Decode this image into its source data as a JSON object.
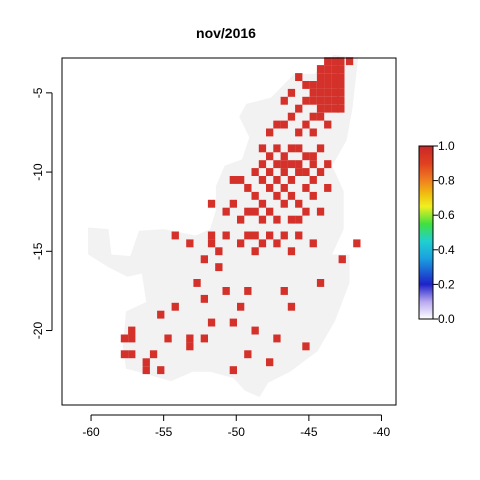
{
  "chart_data": {
    "type": "heatmap",
    "title": "nov/2016",
    "xlabel": "",
    "ylabel": "",
    "xlim": [
      -62,
      -39
    ],
    "ylim": [
      -24.7,
      -2.8
    ],
    "x_ticks": [
      -60,
      -55,
      -50,
      -45,
      -40
    ],
    "y_ticks": [
      -5,
      -10,
      -15,
      -20
    ],
    "grid": false,
    "cell_size_deg": 0.5,
    "background_value": 0,
    "colors": {
      "region_fill": "#f2f2f2",
      "hot_cell": "#d3312a"
    },
    "legend": {
      "placement": "right",
      "ticks": [
        0.0,
        0.2,
        0.4,
        0.6,
        0.8,
        1.0
      ],
      "tick_labels": [
        "0.0",
        "0.2",
        "0.4",
        "0.6",
        "0.8",
        "1.0"
      ],
      "gradient": [
        {
          "value": 0.0,
          "color": "#ffffff"
        },
        {
          "value": 0.1,
          "color": "#b8a8f0"
        },
        {
          "value": 0.2,
          "color": "#1e22c8"
        },
        {
          "value": 0.35,
          "color": "#1aa0e0"
        },
        {
          "value": 0.45,
          "color": "#20d0d0"
        },
        {
          "value": 0.55,
          "color": "#40e040"
        },
        {
          "value": 0.65,
          "color": "#f0f020"
        },
        {
          "value": 0.72,
          "color": "#f0c010"
        },
        {
          "value": 0.8,
          "color": "#f08020"
        },
        {
          "value": 0.9,
          "color": "#e04020"
        },
        {
          "value": 1.0,
          "color": "#c82828"
        }
      ]
    },
    "region_outline": [
      [
        -60.2,
        -13.5
      ],
      [
        -58.8,
        -13.6
      ],
      [
        -58.6,
        -15.2
      ],
      [
        -57.3,
        -15.3
      ],
      [
        -56.7,
        -13.7
      ],
      [
        -55.0,
        -13.6
      ],
      [
        -52.8,
        -14.0
      ],
      [
        -51.8,
        -13.6
      ],
      [
        -51.4,
        -12.4
      ],
      [
        -51.4,
        -10.9
      ],
      [
        -50.8,
        -9.6
      ],
      [
        -49.6,
        -9.2
      ],
      [
        -49.1,
        -7.8
      ],
      [
        -49.8,
        -6.5
      ],
      [
        -49.3,
        -5.7
      ],
      [
        -47.6,
        -5.3
      ],
      [
        -46.0,
        -3.8
      ],
      [
        -44.6,
        -3.8
      ],
      [
        -43.3,
        -2.6
      ],
      [
        -41.6,
        -2.8
      ],
      [
        -42.0,
        -6.0
      ],
      [
        -42.4,
        -8.0
      ],
      [
        -43.4,
        -9.6
      ],
      [
        -42.6,
        -11.2
      ],
      [
        -42.6,
        -13.6
      ],
      [
        -43.4,
        -15.2
      ],
      [
        -42.2,
        -15.2
      ],
      [
        -42.2,
        -17.0
      ],
      [
        -43.2,
        -19.4
      ],
      [
        -44.4,
        -21.3
      ],
      [
        -46.3,
        -22.6
      ],
      [
        -47.8,
        -23.3
      ],
      [
        -48.4,
        -24.2
      ],
      [
        -49.4,
        -23.8
      ],
      [
        -50.2,
        -23.0
      ],
      [
        -51.8,
        -22.6
      ],
      [
        -53.0,
        -22.6
      ],
      [
        -54.5,
        -23.2
      ],
      [
        -56.0,
        -22.8
      ],
      [
        -57.6,
        -22.4
      ],
      [
        -57.8,
        -21.0
      ],
      [
        -57.6,
        -18.8
      ],
      [
        -56.2,
        -18.2
      ],
      [
        -56.5,
        -16.4
      ],
      [
        -57.5,
        -16.6
      ],
      [
        -58.8,
        -16.0
      ],
      [
        -60.2,
        -15.2
      ]
    ],
    "points": [
      [
        -43.2,
        -3.0
      ],
      [
        -43.7,
        -3.0
      ],
      [
        -42.8,
        -3.0
      ],
      [
        -42.2,
        -3.0
      ],
      [
        -43.7,
        -3.5
      ],
      [
        -43.2,
        -3.5
      ],
      [
        -42.8,
        -3.5
      ],
      [
        -44.2,
        -3.5
      ],
      [
        -44.2,
        -4.0
      ],
      [
        -43.7,
        -4.0
      ],
      [
        -43.2,
        -4.0
      ],
      [
        -42.8,
        -4.0
      ],
      [
        -44.7,
        -4.5
      ],
      [
        -44.2,
        -4.5
      ],
      [
        -43.7,
        -4.5
      ],
      [
        -43.2,
        -4.5
      ],
      [
        -42.8,
        -4.5
      ],
      [
        -44.7,
        -5.0
      ],
      [
        -44.2,
        -5.0
      ],
      [
        -43.7,
        -5.0
      ],
      [
        -43.2,
        -5.0
      ],
      [
        -42.8,
        -5.0
      ],
      [
        -44.7,
        -5.5
      ],
      [
        -44.2,
        -5.5
      ],
      [
        -43.7,
        -5.5
      ],
      [
        -43.2,
        -5.5
      ],
      [
        -42.8,
        -5.5
      ],
      [
        -44.2,
        -6.0
      ],
      [
        -43.7,
        -6.0
      ],
      [
        -43.2,
        -6.0
      ],
      [
        -42.8,
        -6.0
      ],
      [
        -45.7,
        -4.0
      ],
      [
        -46.2,
        -5.0
      ],
      [
        -46.7,
        -5.5
      ],
      [
        -45.2,
        -4.5
      ],
      [
        -45.2,
        -5.5
      ],
      [
        -44.7,
        -6.5
      ],
      [
        -44.2,
        -6.5
      ],
      [
        -45.7,
        -6.0
      ],
      [
        -46.2,
        -6.5
      ],
      [
        -47.2,
        -7.0
      ],
      [
        -46.7,
        -7.0
      ],
      [
        -45.2,
        -7.0
      ],
      [
        -43.7,
        -7.0
      ],
      [
        -47.7,
        -7.5
      ],
      [
        -45.7,
        -7.5
      ],
      [
        -44.7,
        -7.5
      ],
      [
        -48.2,
        -8.5
      ],
      [
        -47.2,
        -8.5
      ],
      [
        -46.2,
        -8.5
      ],
      [
        -45.7,
        -8.5
      ],
      [
        -44.2,
        -8.5
      ],
      [
        -47.7,
        -9.0
      ],
      [
        -46.7,
        -9.0
      ],
      [
        -45.2,
        -9.0
      ],
      [
        -44.7,
        -9.0
      ],
      [
        -48.2,
        -9.5
      ],
      [
        -47.2,
        -9.5
      ],
      [
        -46.7,
        -9.5
      ],
      [
        -46.2,
        -9.5
      ],
      [
        -45.7,
        -9.5
      ],
      [
        -44.7,
        -9.5
      ],
      [
        -43.7,
        -9.5
      ],
      [
        -48.7,
        -10.0
      ],
      [
        -47.7,
        -10.0
      ],
      [
        -46.7,
        -10.0
      ],
      [
        -45.7,
        -10.0
      ],
      [
        -45.2,
        -10.0
      ],
      [
        -44.2,
        -10.0
      ],
      [
        -48.2,
        -10.5
      ],
      [
        -47.2,
        -10.5
      ],
      [
        -46.2,
        -10.5
      ],
      [
        -44.7,
        -10.5
      ],
      [
        -47.7,
        -11.0
      ],
      [
        -46.7,
        -11.0
      ],
      [
        -45.2,
        -11.0
      ],
      [
        -43.7,
        -11.0
      ],
      [
        -48.7,
        -11.5
      ],
      [
        -47.2,
        -11.5
      ],
      [
        -46.2,
        -11.5
      ],
      [
        -44.7,
        -11.5
      ],
      [
        -50.2,
        -10.5
      ],
      [
        -49.7,
        -10.5
      ],
      [
        -49.2,
        -11.0
      ],
      [
        -51.7,
        -12.0
      ],
      [
        -50.2,
        -12.0
      ],
      [
        -48.2,
        -12.0
      ],
      [
        -46.7,
        -12.0
      ],
      [
        -45.7,
        -12.0
      ],
      [
        -50.7,
        -12.5
      ],
      [
        -49.2,
        -12.5
      ],
      [
        -48.7,
        -12.5
      ],
      [
        -47.7,
        -12.5
      ],
      [
        -45.2,
        -12.5
      ],
      [
        -44.2,
        -12.5
      ],
      [
        -49.7,
        -13.0
      ],
      [
        -48.2,
        -13.0
      ],
      [
        -47.2,
        -13.0
      ],
      [
        -46.2,
        -13.0
      ],
      [
        -45.7,
        -13.0
      ],
      [
        -51.7,
        -14.0
      ],
      [
        -50.7,
        -14.0
      ],
      [
        -49.2,
        -14.0
      ],
      [
        -48.7,
        -14.0
      ],
      [
        -47.7,
        -14.0
      ],
      [
        -46.7,
        -14.0
      ],
      [
        -45.7,
        -14.0
      ],
      [
        -51.7,
        -14.5
      ],
      [
        -49.7,
        -14.5
      ],
      [
        -48.2,
        -14.5
      ],
      [
        -47.2,
        -14.5
      ],
      [
        -44.7,
        -14.5
      ],
      [
        -51.2,
        -15.0
      ],
      [
        -48.7,
        -15.0
      ],
      [
        -46.2,
        -15.0
      ],
      [
        -54.2,
        -14.0
      ],
      [
        -53.2,
        -14.5
      ],
      [
        -52.2,
        -15.5
      ],
      [
        -51.2,
        -16.0
      ],
      [
        -52.7,
        -17.0
      ],
      [
        -50.7,
        -17.5
      ],
      [
        -49.2,
        -17.5
      ],
      [
        -46.7,
        -17.5
      ],
      [
        -42.7,
        -15.5
      ],
      [
        -54.2,
        -18.5
      ],
      [
        -55.2,
        -19.0
      ],
      [
        -52.2,
        -18.0
      ],
      [
        -49.7,
        -18.5
      ],
      [
        -51.7,
        -19.5
      ],
      [
        -50.2,
        -19.5
      ],
      [
        -48.7,
        -20.0
      ],
      [
        -46.2,
        -18.5
      ],
      [
        -44.2,
        -17.0
      ],
      [
        -54.7,
        -20.5
      ],
      [
        -53.2,
        -20.5
      ],
      [
        -52.2,
        -20.5
      ],
      [
        -47.2,
        -20.5
      ],
      [
        -57.2,
        -20.0
      ],
      [
        -57.2,
        -20.5
      ],
      [
        -57.7,
        -20.5
      ],
      [
        -57.7,
        -21.5
      ],
      [
        -57.2,
        -21.5
      ],
      [
        -56.2,
        -22.0
      ],
      [
        -55.7,
        -21.5
      ],
      [
        -55.2,
        -22.5
      ],
      [
        -56.2,
        -22.5
      ],
      [
        -53.2,
        -21.0
      ],
      [
        -50.2,
        -22.5
      ],
      [
        -49.2,
        -21.5
      ],
      [
        -47.7,
        -22.0
      ],
      [
        -45.2,
        -21.0
      ],
      [
        -41.7,
        -14.5
      ]
    ]
  }
}
